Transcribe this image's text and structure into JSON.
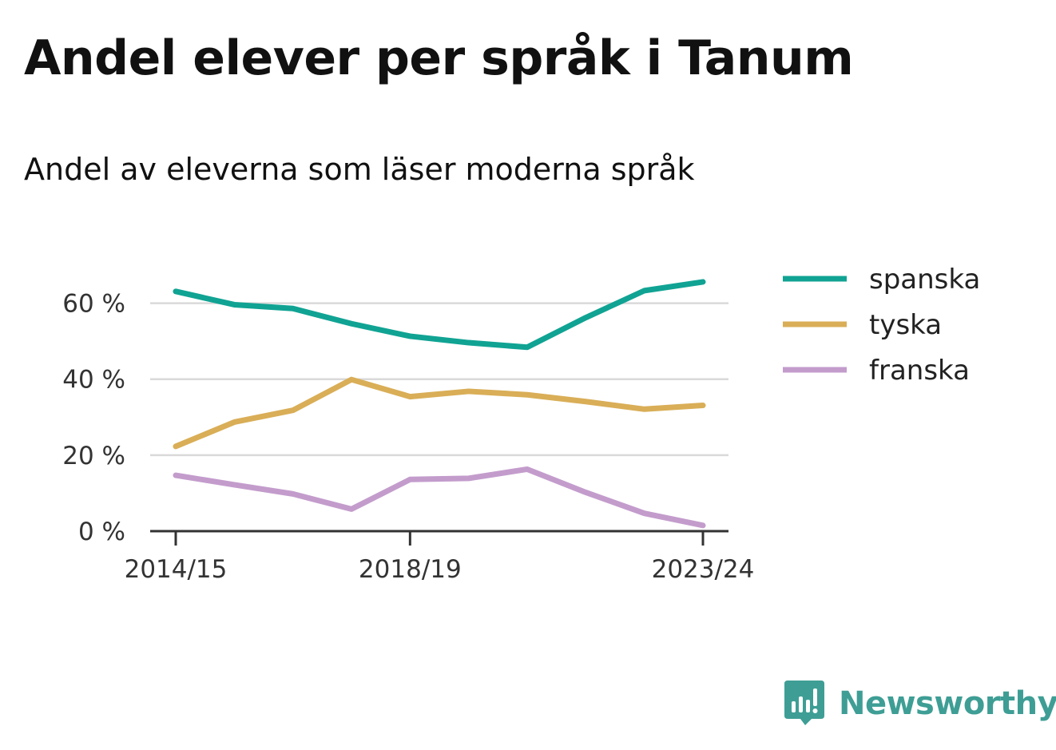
{
  "title": "Andel elever per språk i Tanum",
  "subtitle": "Andel av eleverna som läser moderna språk",
  "brand": {
    "name": "Newsworthy",
    "icon": "newsworthy-logo-icon"
  },
  "chart_data": {
    "type": "line",
    "x": [
      "2014/15",
      "2015/16",
      "2016/17",
      "2017/18",
      "2018/19",
      "2019/20",
      "2020/21",
      "2021/22",
      "2022/23",
      "2023/24"
    ],
    "x_tick_labels": [
      "2014/15",
      "2018/19",
      "2023/24"
    ],
    "y_ticks": [
      0,
      20,
      40,
      60
    ],
    "y_tick_labels": [
      "0 %",
      "20 %",
      "40 %",
      "60 %"
    ],
    "ylim": [
      0,
      70
    ],
    "grid": true,
    "legend_position": "top-right",
    "series": [
      {
        "name": "spanska",
        "color": "#10a393",
        "values": [
          63.1,
          59.6,
          58.6,
          54.6,
          51.3,
          49.6,
          48.4,
          56.2,
          63.3,
          65.6
        ]
      },
      {
        "name": "tyska",
        "color": "#d9ae57",
        "values": [
          22.3,
          28.7,
          31.8,
          39.9,
          35.4,
          36.8,
          35.9,
          34.1,
          32.1,
          33.1
        ]
      },
      {
        "name": "franska",
        "color": "#c39ccc",
        "values": [
          14.7,
          12.2,
          9.8,
          5.8,
          13.6,
          13.9,
          16.3,
          10.2,
          4.7,
          1.5
        ]
      }
    ]
  }
}
